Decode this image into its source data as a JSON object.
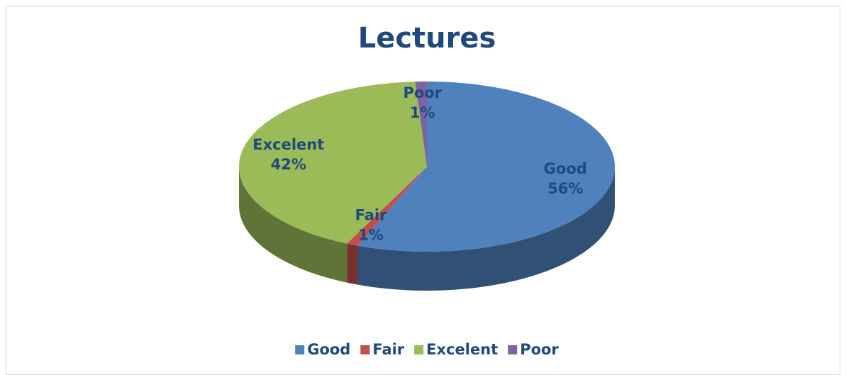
{
  "chart_data": {
    "type": "pie",
    "title": "Lectures",
    "categories": [
      "Good",
      "Fair",
      "Excelent",
      "Poor"
    ],
    "values": [
      56,
      1,
      42,
      1
    ],
    "value_labels": [
      "56%",
      "1%",
      "42%",
      "1%"
    ],
    "colors": [
      "#4f81bd",
      "#c0504d",
      "#9bbb59",
      "#8064a2"
    ],
    "legend": "bottom"
  }
}
